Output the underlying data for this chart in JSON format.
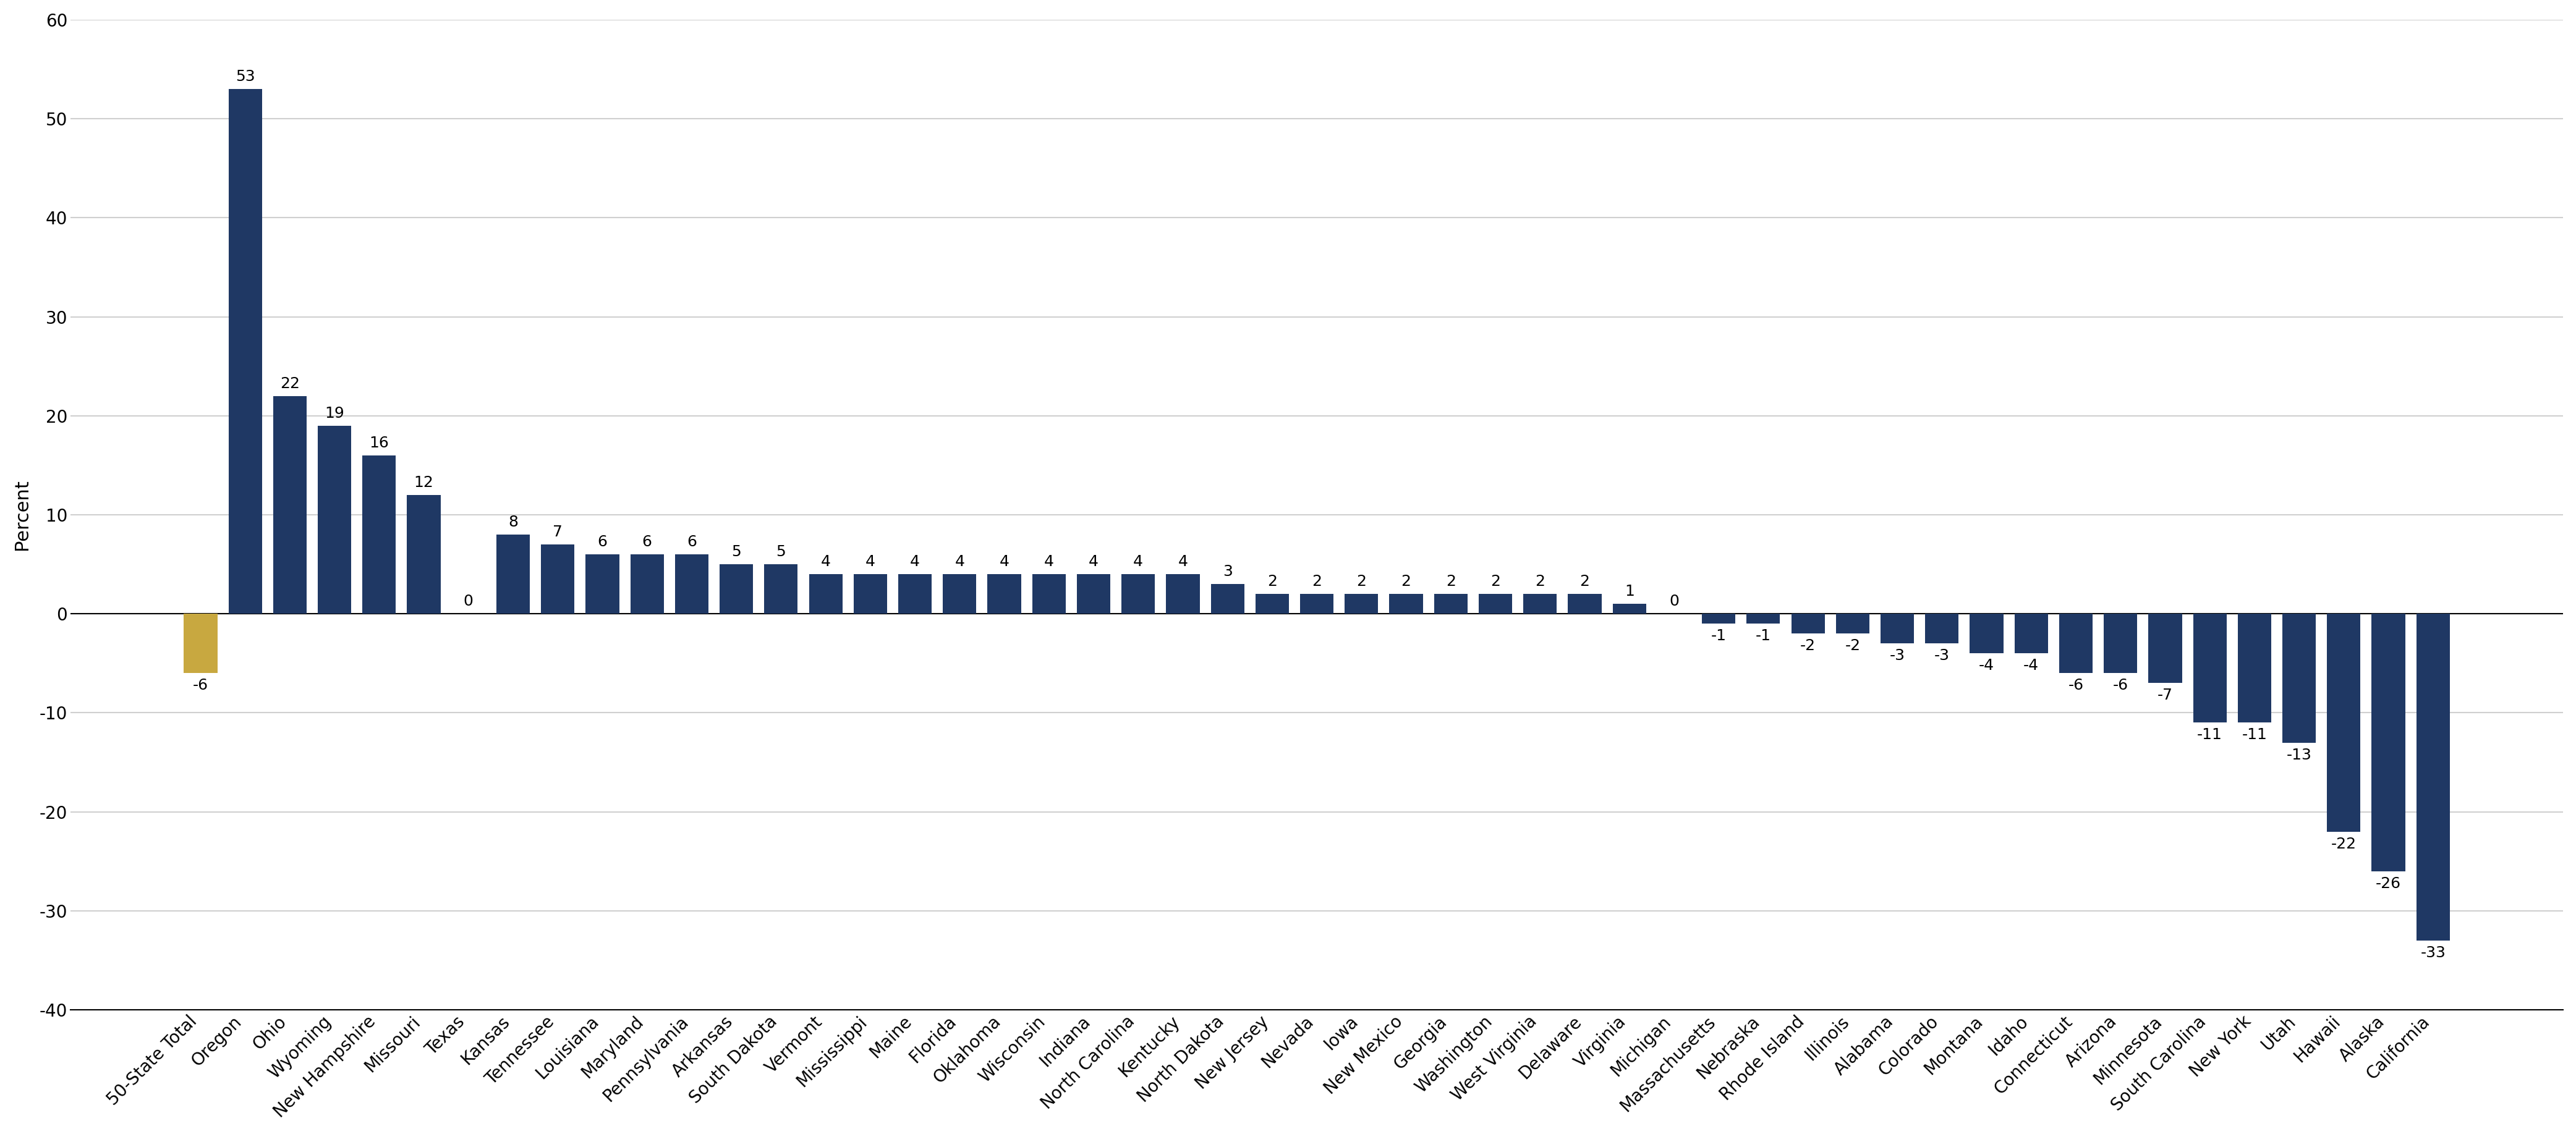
{
  "categories": [
    "50-State Total",
    "Oregon",
    "Ohio",
    "Wyoming",
    "New Hampshire",
    "Missouri",
    "Texas",
    "Kansas",
    "Tennessee",
    "Louisiana",
    "Maryland",
    "Pennsylvania",
    "Arkansas",
    "South Dakota",
    "Vermont",
    "Mississippi",
    "Maine",
    "Florida",
    "Oklahoma",
    "Wisconsin",
    "Indiana",
    "North Carolina",
    "Kentucky",
    "North Dakota",
    "New Jersey",
    "Nevada",
    "Iowa",
    "New Mexico",
    "Georgia",
    "Washington",
    "West Virginia",
    "Delaware",
    "Virginia",
    "Michigan",
    "Massachusetts",
    "Nebraska",
    "Rhode Island",
    "Illinois",
    "Alabama",
    "Colorado",
    "Montana",
    "Idaho",
    "Connecticut",
    "Arizona",
    "Minnesota",
    "South Carolina",
    "New York",
    "Utah",
    "Hawaii",
    "Alaska",
    "California"
  ],
  "values": [
    -6,
    53,
    22,
    19,
    16,
    12,
    0,
    8,
    7,
    6,
    6,
    6,
    5,
    5,
    4,
    4,
    4,
    4,
    4,
    4,
    4,
    4,
    4,
    3,
    2,
    2,
    2,
    2,
    2,
    2,
    2,
    2,
    1,
    0,
    -1,
    -1,
    -2,
    -2,
    -3,
    -3,
    -4,
    -4,
    -6,
    -6,
    -7,
    -11,
    -11,
    -13,
    -22,
    -26,
    -33
  ],
  "bar_color_positive": "#1f3864",
  "bar_color_negative_total": "#c8a840",
  "bar_color_negative": "#1f3864",
  "ylabel": "Percent",
  "ylim_min": -40,
  "ylim_max": 60,
  "yticks": [
    -40,
    -30,
    -20,
    -10,
    0,
    10,
    20,
    30,
    40,
    50,
    60
  ],
  "grid_color": "#d0d0d0",
  "background_color": "#ffffff",
  "label_fontsize": 18,
  "tick_fontsize": 20,
  "ylabel_fontsize": 22
}
